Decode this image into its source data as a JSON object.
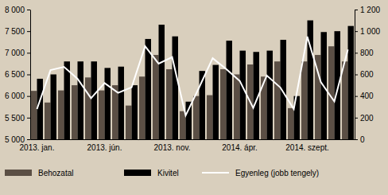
{
  "chart_data": {
    "type": "bar",
    "categories": [
      "2013. jan.",
      null,
      null,
      null,
      null,
      "2013. jún.",
      null,
      null,
      null,
      null,
      "2013. nov.",
      null,
      null,
      null,
      null,
      "2014. ápr.",
      null,
      null,
      null,
      null,
      "2014. szept.",
      null,
      null,
      null
    ],
    "series": [
      {
        "name": "Behozatal",
        "type": "bar",
        "color": "#5b4f45",
        "values": [
          6120,
          5850,
          6130,
          6250,
          6430,
          6130,
          6250,
          5780,
          6450,
          6950,
          6620,
          5650,
          6000,
          6020,
          6620,
          6500,
          6730,
          6450,
          6800,
          5720,
          6800,
          6950,
          7150,
          6800
        ]
      },
      {
        "name": "Kivitel",
        "type": "bar",
        "color": "#000000",
        "values": [
          6400,
          6500,
          6800,
          6800,
          6800,
          6650,
          6680,
          6250,
          7320,
          7650,
          7380,
          5870,
          6580,
          6720,
          7280,
          7050,
          7020,
          7050,
          7300,
          6000,
          7750,
          7480,
          7500,
          7620
        ]
      },
      {
        "name": "Egyenleg (jobb tengely)",
        "type": "line",
        "axis": "y2",
        "color": "#ffffff",
        "values": [
          280,
          640,
          670,
          560,
          380,
          520,
          430,
          480,
          860,
          700,
          760,
          220,
          480,
          750,
          650,
          540,
          290,
          590,
          480,
          280,
          950,
          530,
          350,
          830
        ]
      }
    ],
    "ylim": [
      5000,
      8000
    ],
    "yticks": [
      {
        "value": 5000,
        "label": "5 000"
      },
      {
        "value": 5500,
        "label": "5 500"
      },
      {
        "value": 6000,
        "label": "6 000"
      },
      {
        "value": 6500,
        "label": "6 500"
      },
      {
        "value": 7000,
        "label": "7 000"
      },
      {
        "value": 7500,
        "label": "7 500"
      },
      {
        "value": 8000,
        "label": "8 000"
      }
    ],
    "y2lim": [
      0,
      1200
    ],
    "y2ticks": [
      0,
      200,
      400,
      600,
      800,
      {
        "value": 1000,
        "label": "1 000"
      },
      {
        "value": 1200,
        "label": "1 200"
      }
    ],
    "grid": false,
    "legend": "bottom"
  }
}
